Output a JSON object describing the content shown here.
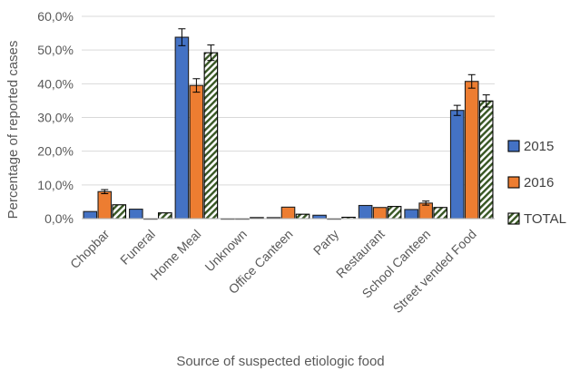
{
  "chart_data": {
    "type": "bar",
    "title": "",
    "xlabel": "Source of suspected etiologic food",
    "ylabel": "Percentage of reported cases",
    "ylim": [
      0,
      60
    ],
    "yticks": [
      "0,0%",
      "10,0%",
      "20,0%",
      "30,0%",
      "40,0%",
      "50,0%",
      "60,0%"
    ],
    "grid": "horizontal",
    "legend_position": "right",
    "categories": [
      "Chopbar",
      "Funeral",
      "Home Meal",
      "Unknown",
      "Office Canteen",
      "Party",
      "Restaurant",
      "School Canteen",
      "Street vended Food"
    ],
    "series": [
      {
        "name": "2015",
        "color": "#4472c4",
        "pattern": "solid",
        "values": [
          2.1,
          2.8,
          53.8,
          0.0,
          0.3,
          1.0,
          3.9,
          2.7,
          32.1
        ],
        "errors": [
          0,
          0,
          2.5,
          0,
          0,
          0,
          0,
          0,
          1.5
        ]
      },
      {
        "name": "2016",
        "color": "#ed7d31",
        "pattern": "solid",
        "values": [
          8.0,
          0.0,
          39.5,
          0.0,
          3.4,
          0.0,
          3.3,
          4.6,
          40.7
        ],
        "errors": [
          0.6,
          0,
          2.0,
          0,
          0,
          0,
          0,
          0.6,
          2.0
        ]
      },
      {
        "name": "TOTAL",
        "color": "#375623",
        "pattern": "diagonal-stripes",
        "values": [
          4.1,
          1.7,
          49.2,
          0.3,
          1.3,
          0.4,
          3.6,
          3.3,
          34.9
        ],
        "errors": [
          0,
          0,
          2.3,
          0,
          0,
          0,
          0,
          0,
          1.8
        ]
      }
    ]
  }
}
